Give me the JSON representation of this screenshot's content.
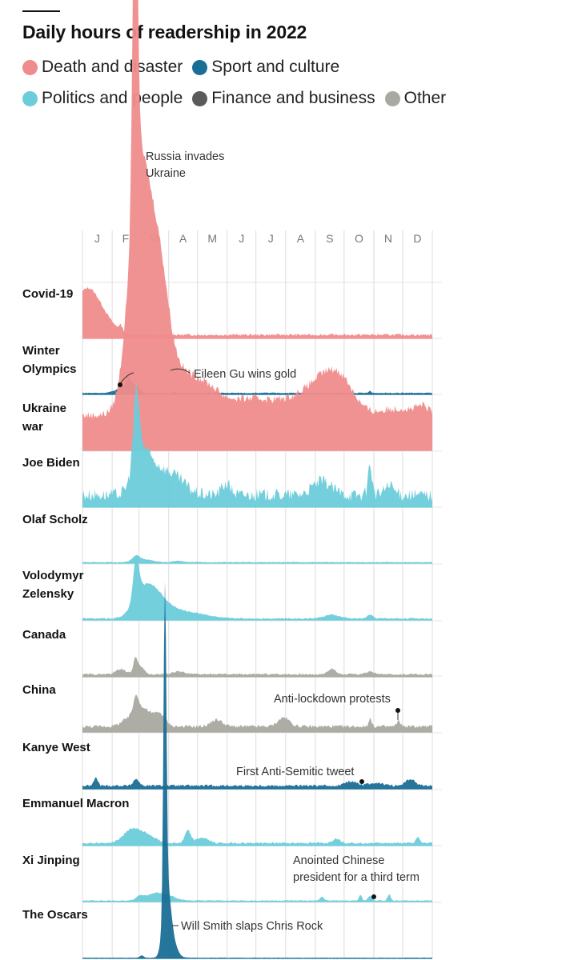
{
  "title": "Daily hours of readership in 2022",
  "legend": [
    {
      "label": "Death and disaster",
      "color": "#f08c8c"
    },
    {
      "label": "Sport and culture",
      "color": "#1a6e96"
    },
    {
      "label": "Politics and people",
      "color": "#6cccda"
    },
    {
      "label": "Finance and business",
      "color": "#5a5a5a"
    },
    {
      "label": "Other",
      "color": "#a9a9a1"
    }
  ],
  "chart_data": {
    "type": "area",
    "title": "Daily hours of readership in 2022",
    "x_months": [
      "J",
      "F",
      "M",
      "A",
      "M",
      "J",
      "J",
      "A",
      "S",
      "O",
      "N",
      "D"
    ],
    "grid": true,
    "series": [
      {
        "name": "Covid-19",
        "category": "Death and disaster",
        "base": 0.07,
        "noise": 0.05,
        "peaks": [
          [
            0.0,
            0.55,
            12
          ],
          [
            4,
            0.2,
            10
          ],
          [
            12,
            0.3,
            12
          ],
          [
            22,
            0.25,
            12
          ],
          [
            40,
            0.12,
            2
          ]
        ]
      },
      {
        "name": "Winter Olympics",
        "category": "Sport and culture",
        "base": 0.03,
        "noise": 0.02,
        "peaks": [
          [
            45,
            0.15,
            8
          ],
          [
            48,
            0.22,
            2
          ],
          [
            55,
            0.12,
            4
          ],
          [
            95,
            0.04,
            1
          ],
          [
            140,
            0.04,
            1
          ],
          [
            300,
            0.05,
            1
          ]
        ]
      },
      {
        "name": "Ukraine war",
        "category": "Death and disaster",
        "base": 0.75,
        "noise": 0.18,
        "peaks": [
          [
            55,
            8.0,
            2.5
          ],
          [
            58,
            3.5,
            10
          ],
          [
            65,
            2.2,
            14
          ],
          [
            80,
            2.0,
            10
          ],
          [
            100,
            0.9,
            18
          ],
          [
            130,
            0.4,
            14
          ],
          [
            165,
            0.25,
            25
          ],
          [
            200,
            0.2,
            30
          ],
          [
            235,
            0.3,
            20
          ],
          [
            258,
            0.7,
            16
          ],
          [
            275,
            0.35,
            12
          ],
          [
            330,
            0.15,
            20
          ],
          [
            355,
            0.15,
            6
          ]
        ]
      },
      {
        "name": "Joe Biden",
        "category": "Politics and people",
        "base": 0.22,
        "noise": 0.28,
        "peaks": [
          [
            56,
            1.5,
            3
          ],
          [
            60,
            0.9,
            8
          ],
          [
            75,
            0.5,
            10
          ],
          [
            95,
            0.4,
            12
          ],
          [
            150,
            0.25,
            5
          ],
          [
            250,
            0.3,
            10
          ],
          [
            300,
            0.7,
            2
          ],
          [
            320,
            0.2,
            5
          ]
        ]
      },
      {
        "name": "Olaf Scholz",
        "category": "Politics and people",
        "base": 0.02,
        "noise": 0.015,
        "peaks": [
          [
            56,
            0.12,
            4
          ],
          [
            65,
            0.06,
            8
          ],
          [
            100,
            0.03,
            5
          ]
        ]
      },
      {
        "name": "Volodymyr Zelensky",
        "category": "Politics and people",
        "base": 0.03,
        "noise": 0.03,
        "peaks": [
          [
            56,
            0.9,
            3
          ],
          [
            62,
            0.5,
            10
          ],
          [
            75,
            0.38,
            10
          ],
          [
            90,
            0.22,
            14
          ],
          [
            120,
            0.1,
            14
          ],
          [
            260,
            0.08,
            8
          ],
          [
            300,
            0.08,
            3
          ]
        ]
      },
      {
        "name": "Canada",
        "category": "Other",
        "base": 0.05,
        "noise": 0.04,
        "peaks": [
          [
            40,
            0.12,
            5
          ],
          [
            55,
            0.3,
            2
          ],
          [
            60,
            0.18,
            4
          ],
          [
            100,
            0.06,
            6
          ],
          [
            260,
            0.12,
            4
          ],
          [
            300,
            0.06,
            4
          ]
        ]
      },
      {
        "name": "China",
        "category": "Other",
        "base": 0.11,
        "noise": 0.07,
        "peaks": [
          [
            50,
            0.2,
            8
          ],
          [
            56,
            0.45,
            3
          ],
          [
            65,
            0.35,
            6
          ],
          [
            80,
            0.3,
            6
          ],
          [
            140,
            0.15,
            6
          ],
          [
            210,
            0.2,
            6
          ],
          [
            300,
            0.18,
            1.5
          ],
          [
            330,
            0.12,
            2
          ]
        ]
      },
      {
        "name": "Kanye West",
        "category": "Sport and culture",
        "base": 0.06,
        "noise": 0.05,
        "peaks": [
          [
            14,
            0.18,
            2
          ],
          [
            56,
            0.15,
            3
          ],
          [
            280,
            0.1,
            6
          ],
          [
            305,
            0.06,
            8
          ],
          [
            342,
            0.14,
            5
          ]
        ]
      },
      {
        "name": "Emmanuel Macron",
        "category": "Politics and people",
        "base": 0.05,
        "noise": 0.04,
        "peaks": [
          [
            50,
            0.25,
            8
          ],
          [
            65,
            0.2,
            10
          ],
          [
            110,
            0.28,
            3
          ],
          [
            125,
            0.12,
            6
          ],
          [
            265,
            0.1,
            4
          ],
          [
            350,
            0.12,
            2
          ]
        ]
      },
      {
        "name": "Xi Jinping",
        "category": "Politics and people",
        "base": 0.02,
        "noise": 0.02,
        "peaks": [
          [
            60,
            0.1,
            4
          ],
          [
            75,
            0.15,
            8
          ],
          [
            90,
            0.1,
            8
          ],
          [
            250,
            0.08,
            2
          ],
          [
            290,
            0.12,
            1.5
          ],
          [
            300,
            0.1,
            2
          ],
          [
            320,
            0.14,
            1.5
          ]
        ]
      },
      {
        "name": "The Oscars",
        "category": "Sport and culture",
        "base": 0.012,
        "noise": 0.01,
        "peaks": [
          [
            86,
            7.0,
            1.5
          ],
          [
            88,
            1.5,
            4
          ],
          [
            94,
            0.3,
            5
          ],
          [
            62,
            0.05,
            2
          ]
        ]
      }
    ],
    "annotations": [
      {
        "text": "Russia invades Ukraine",
        "lines": [
          "Russia invades",
          "Ukraine"
        ]
      },
      {
        "text": "Eileen Gu wins gold",
        "lines": [
          "Eileen Gu wins gold"
        ]
      },
      {
        "text": "Anti-lockdown protests",
        "lines": [
          "Anti-lockdown protests"
        ]
      },
      {
        "text": "First Anti-Semitic tweet",
        "lines": [
          "First Anti-Semitic tweet"
        ]
      },
      {
        "text": "Anointed Chinese president for a third term",
        "lines": [
          "Anointed Chinese",
          "president for a third term"
        ]
      },
      {
        "text": "Will Smith slaps Chris Rock",
        "lines": [
          "Will Smith slaps Chris Rock"
        ]
      }
    ]
  }
}
